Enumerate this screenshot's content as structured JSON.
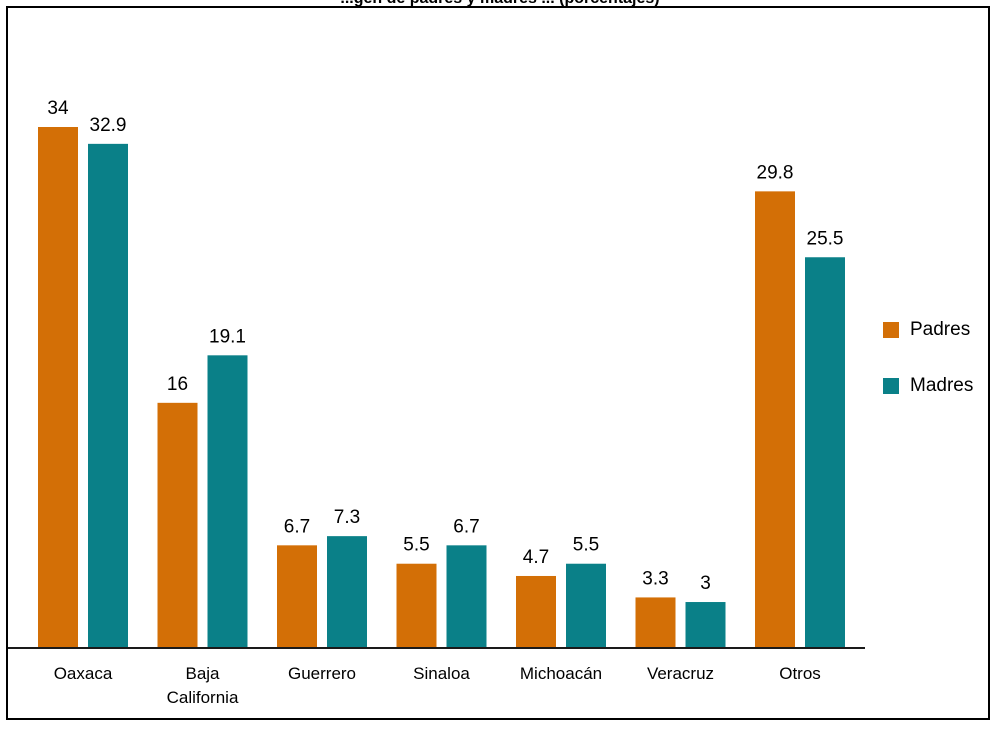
{
  "colors": {
    "padres": "#d36f06",
    "madres": "#0a8088",
    "axis": "#1a1a1a",
    "text": "#000000"
  },
  "chart_data": {
    "type": "bar",
    "title": "...gen de padres y madres ... (porcentajes)",
    "categories": [
      "Oaxaca",
      "Baja\nCalifornia",
      "Guerrero",
      "Sinaloa",
      "Michoacán",
      "Veracruz",
      "Otros"
    ],
    "series": [
      {
        "name": "Padres",
        "values": [
          34,
          16,
          6.7,
          5.5,
          4.7,
          3.3,
          29.8
        ]
      },
      {
        "name": "Madres",
        "values": [
          32.9,
          19.1,
          7.3,
          6.7,
          5.5,
          3,
          25.5
        ]
      }
    ],
    "value_labels": {
      "Padres": [
        "34",
        "16",
        "6.7",
        "5.5",
        "4.7",
        "3.3",
        "29.8"
      ],
      "Madres": [
        "32.9",
        "19.1",
        "7.3",
        "6.7",
        "5.5",
        "3",
        "25.5"
      ]
    },
    "ylim": [
      0,
      34
    ],
    "grid": false,
    "legend_position": "right"
  },
  "legend": [
    {
      "label": "Padres",
      "color": "#d36f06"
    },
    {
      "label": "Madres",
      "color": "#0a8088"
    }
  ]
}
